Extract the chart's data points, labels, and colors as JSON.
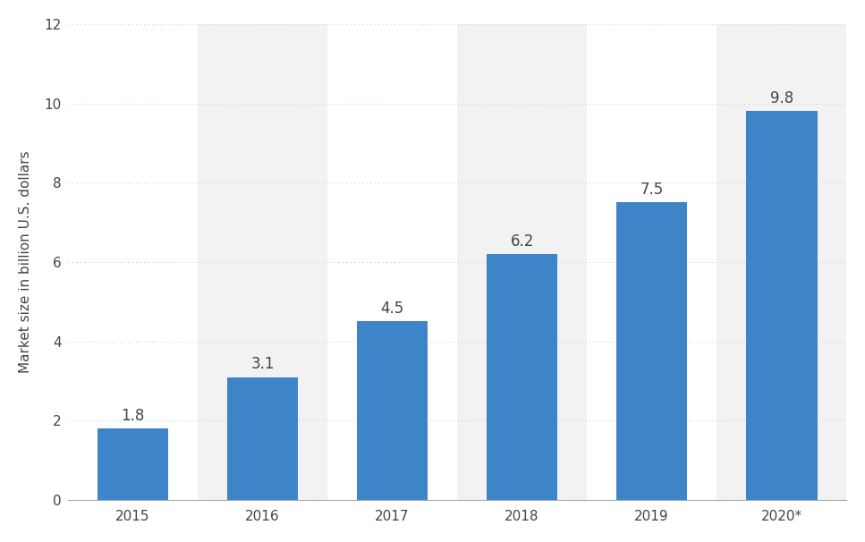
{
  "categories": [
    "2015",
    "2016",
    "2017",
    "2018",
    "2019",
    "2020*"
  ],
  "values": [
    1.8,
    3.1,
    4.5,
    6.2,
    7.5,
    9.8
  ],
  "bar_color": "#3d85c8",
  "bg_color": "#ffffff",
  "plot_bg_color": "#ffffff",
  "stripe_color": "#f2f2f2",
  "stripe_indices": [
    1,
    3,
    5
  ],
  "ylabel": "Market size in billion U.S. dollars",
  "ylim": [
    0,
    12
  ],
  "yticks": [
    0,
    2,
    4,
    6,
    8,
    10,
    12
  ],
  "grid_color": "#cccccc",
  "label_color": "#444444",
  "value_label_fontsize": 12,
  "axis_label_fontsize": 11,
  "tick_fontsize": 11,
  "bar_width": 0.55
}
